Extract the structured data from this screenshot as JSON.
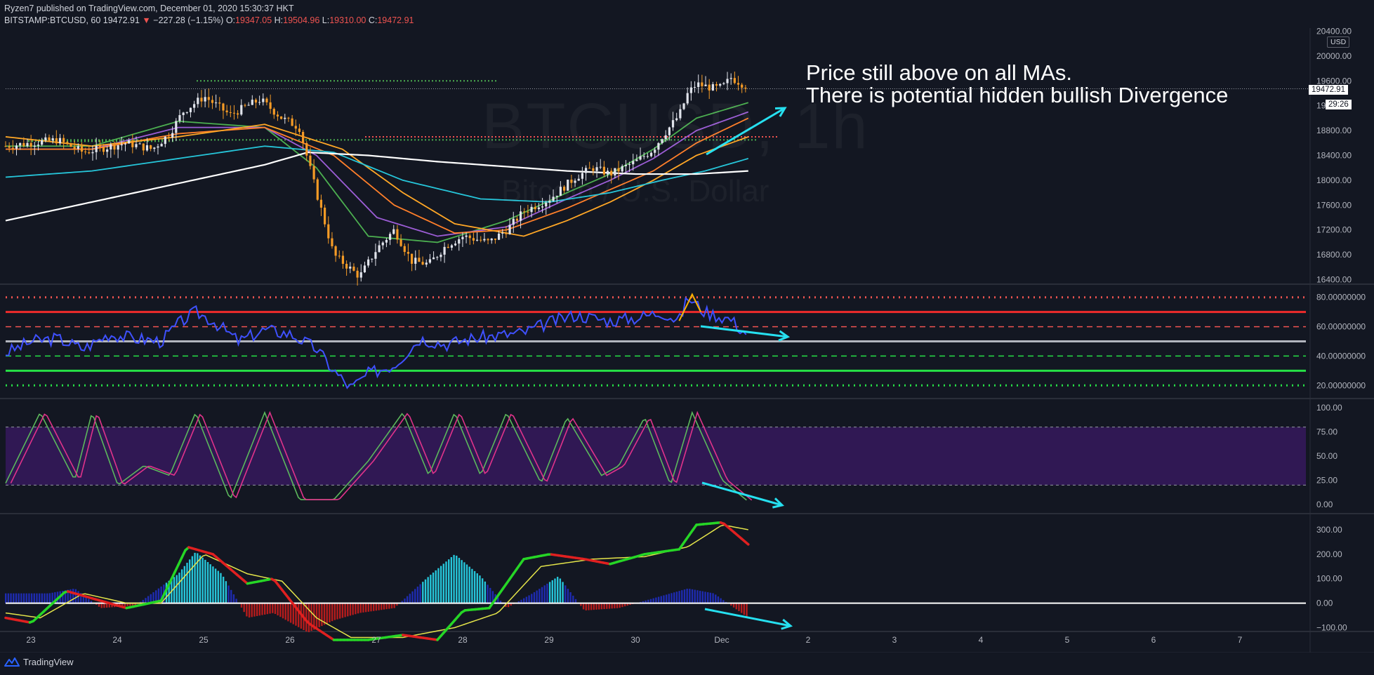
{
  "header": {
    "publish_line": "Ryzen7 published on TradingView.com, December 01, 2020 15:30:37 HKT",
    "symbol": "BITSTAMP:BTCUSD, 60",
    "last": "19472.91",
    "change": "−227.28 (−1.15%)",
    "o_label": "O:",
    "o": "19347.05",
    "h_label": "H:",
    "h": "19504.96",
    "l_label": "L:",
    "l": "19310.00",
    "c_label": "C:",
    "c": "19472.91"
  },
  "watermark": {
    "symbol": "BTCUSD, 1h",
    "name": "Bitcoin / U.S. Dollar"
  },
  "annotation": {
    "line1": "Price still above on all MAs.",
    "line2": "There is potential hidden bullish Divergence"
  },
  "badges": {
    "currency": "USD",
    "price": "19472.91",
    "countdown": "29:26"
  },
  "brand": {
    "name": "TradingView"
  },
  "colors": {
    "background": "#131722",
    "up": "#26a69a",
    "down": "#ef5350",
    "candle_up": "#e0e3eb",
    "candle_down": "#f59b26",
    "ma_fast": "#4caf50",
    "ma_2": "#9c5dd6",
    "ma_3": "#ff7f2a",
    "ma_4": "#ffa726",
    "ma_5": "#26c6da",
    "ma_200": "#ffffff",
    "rsi": "#3f51ff",
    "annotation_arrow": "#26e0f0"
  },
  "chart_data": [
    {
      "type": "candlestick",
      "panel": "price",
      "x_tick_labels": [
        "23",
        "24",
        "25",
        "26",
        "27",
        "28",
        "29",
        "30",
        "Dec",
        "2",
        "3",
        "4",
        "5",
        "6",
        "7"
      ],
      "y_tick_labels": [
        "20400.00",
        "20000.00",
        "19600.00",
        "19200.00",
        "18800.00",
        "18400.00",
        "18000.00",
        "17600.00",
        "17200.00",
        "16800.00",
        "16400.00"
      ],
      "ylim": [
        16350,
        20450
      ],
      "price_path": [
        [
          0,
          18550
        ],
        [
          0.6,
          18650
        ],
        [
          0.9,
          18450
        ],
        [
          1.4,
          18600
        ],
        [
          1.7,
          18500
        ],
        [
          1.9,
          18750
        ],
        [
          2.05,
          19100
        ],
        [
          2.3,
          19350
        ],
        [
          2.6,
          19050
        ],
        [
          2.8,
          19200
        ],
        [
          2.95,
          19300
        ],
        [
          3.2,
          19000
        ],
        [
          3.4,
          18850
        ],
        [
          3.6,
          17800
        ],
        [
          3.8,
          16800
        ],
        [
          4.1,
          16450
        ],
        [
          4.3,
          16900
        ],
        [
          4.5,
          17200
        ],
        [
          4.7,
          16700
        ],
        [
          4.9,
          16650
        ],
        [
          5.1,
          16950
        ],
        [
          5.3,
          17100
        ],
        [
          5.6,
          17000
        ],
        [
          5.8,
          17200
        ],
        [
          6.0,
          17500
        ],
        [
          6.3,
          17700
        ],
        [
          6.6,
          18050
        ],
        [
          6.8,
          18200
        ],
        [
          7.0,
          18100
        ],
        [
          7.3,
          18300
        ],
        [
          7.5,
          18500
        ],
        [
          7.6,
          18700
        ],
        [
          7.8,
          19050
        ],
        [
          7.9,
          19400
        ],
        [
          8.0,
          19550
        ],
        [
          8.2,
          19480
        ],
        [
          8.3,
          19500
        ],
        [
          8.4,
          19650
        ],
        [
          8.6,
          19500
        ]
      ],
      "moving_averages": [
        {
          "points": [
            [
              0,
              18550
            ],
            [
              1,
              18550
            ],
            [
              2,
              18950
            ],
            [
              3,
              18850
            ],
            [
              3.6,
              18200
            ],
            [
              4.2,
              17100
            ],
            [
              5,
              17000
            ],
            [
              5.8,
              17350
            ],
            [
              6.5,
              17800
            ],
            [
              7,
              18100
            ],
            [
              7.5,
              18500
            ],
            [
              8,
              19000
            ],
            [
              8.6,
              19250
            ]
          ]
        },
        {
          "points": [
            [
              0,
              18500
            ],
            [
              1,
              18500
            ],
            [
              2,
              18850
            ],
            [
              3,
              18850
            ],
            [
              3.6,
              18400
            ],
            [
              4.3,
              17400
            ],
            [
              5,
              17100
            ],
            [
              5.8,
              17250
            ],
            [
              6.5,
              17700
            ],
            [
              7,
              18000
            ],
            [
              7.5,
              18350
            ],
            [
              8,
              18800
            ],
            [
              8.6,
              19100
            ]
          ]
        },
        {
          "points": [
            [
              0,
              18500
            ],
            [
              1,
              18500
            ],
            [
              2,
              18750
            ],
            [
              3,
              18850
            ],
            [
              3.8,
              18400
            ],
            [
              4.5,
              17600
            ],
            [
              5.2,
              17150
            ],
            [
              5.8,
              17200
            ],
            [
              6.5,
              17550
            ],
            [
              7,
              17850
            ],
            [
              7.5,
              18150
            ],
            [
              8,
              18600
            ],
            [
              8.6,
              19000
            ]
          ]
        },
        {
          "points": [
            [
              0,
              18700
            ],
            [
              1,
              18550
            ],
            [
              2,
              18700
            ],
            [
              3,
              18900
            ],
            [
              3.9,
              18500
            ],
            [
              4.6,
              17800
            ],
            [
              5.2,
              17300
            ],
            [
              6,
              17100
            ],
            [
              6.5,
              17350
            ],
            [
              7,
              17650
            ],
            [
              7.5,
              18000
            ],
            [
              8,
              18400
            ],
            [
              8.6,
              18700
            ]
          ]
        },
        {
          "points": [
            [
              0,
              18050
            ],
            [
              1,
              18150
            ],
            [
              2,
              18350
            ],
            [
              3,
              18550
            ],
            [
              3.8,
              18450
            ],
            [
              4.6,
              18000
            ],
            [
              5.5,
              17700
            ],
            [
              6.3,
              17650
            ],
            [
              7,
              17800
            ],
            [
              7.6,
              18000
            ],
            [
              8.1,
              18150
            ],
            [
              8.6,
              18350
            ]
          ]
        },
        {
          "points": [
            [
              0,
              17350
            ],
            [
              1,
              17650
            ],
            [
              2,
              17950
            ],
            [
              3,
              18250
            ],
            [
              3.5,
              18450
            ],
            [
              4.2,
              18400
            ],
            [
              5,
              18300
            ],
            [
              6.5,
              18150
            ],
            [
              7.3,
              18100
            ],
            [
              8,
              18100
            ],
            [
              8.6,
              18150
            ]
          ]
        }
      ],
      "horizontal_levels": [
        19600,
        18700,
        18650
      ],
      "current_price": 19472.91
    },
    {
      "type": "line",
      "panel": "rsi",
      "y_tick_labels": [
        "80.00000000",
        "60.00000000",
        "40.00000000",
        "20.00000000"
      ],
      "ylim": [
        12,
        88
      ],
      "levels": [
        80,
        70,
        60,
        50,
        40,
        30,
        20
      ],
      "points": [
        [
          0,
          42
        ],
        [
          0.3,
          50
        ],
        [
          0.6,
          52
        ],
        [
          0.9,
          45
        ],
        [
          1.2,
          55
        ],
        [
          1.5,
          52
        ],
        [
          1.8,
          50
        ],
        [
          2,
          62
        ],
        [
          2.2,
          70
        ],
        [
          2.4,
          64
        ],
        [
          2.7,
          50
        ],
        [
          3,
          58
        ],
        [
          3.3,
          55
        ],
        [
          3.6,
          45
        ],
        [
          3.8,
          30
        ],
        [
          4,
          18
        ],
        [
          4.2,
          28
        ],
        [
          4.5,
          34
        ],
        [
          4.8,
          52
        ],
        [
          5.1,
          48
        ],
        [
          5.4,
          52
        ],
        [
          5.7,
          54
        ],
        [
          6,
          56
        ],
        [
          6.3,
          63
        ],
        [
          6.6,
          68
        ],
        [
          7,
          64
        ],
        [
          7.3,
          66
        ],
        [
          7.6,
          70
        ],
        [
          7.8,
          64
        ],
        [
          7.9,
          80
        ],
        [
          8.1,
          70
        ],
        [
          8.4,
          65
        ],
        [
          8.5,
          59
        ],
        [
          8.6,
          55
        ]
      ]
    },
    {
      "type": "line",
      "panel": "stochastic",
      "y_tick_labels": [
        "100.00",
        "75.00",
        "50.00",
        "25.00",
        "0.00"
      ],
      "ylim": [
        -8,
        108
      ],
      "band": [
        20,
        80
      ],
      "k_points": [
        [
          0,
          22
        ],
        [
          0.4,
          95
        ],
        [
          0.8,
          25
        ],
        [
          1.0,
          95
        ],
        [
          1.3,
          20
        ],
        [
          1.6,
          40
        ],
        [
          1.9,
          30
        ],
        [
          2.2,
          95
        ],
        [
          2.6,
          5
        ],
        [
          3.0,
          95
        ],
        [
          3.4,
          5
        ],
        [
          3.8,
          5
        ],
        [
          4.2,
          45
        ],
        [
          4.6,
          95
        ],
        [
          4.9,
          30
        ],
        [
          5.2,
          95
        ],
        [
          5.5,
          30
        ],
        [
          5.8,
          95
        ],
        [
          6.2,
          22
        ],
        [
          6.5,
          90
        ],
        [
          6.9,
          30
        ],
        [
          7.1,
          40
        ],
        [
          7.4,
          90
        ],
        [
          7.7,
          20
        ],
        [
          7.95,
          95
        ],
        [
          8.3,
          25
        ],
        [
          8.6,
          3
        ]
      ]
    },
    {
      "type": "bar",
      "panel": "macd",
      "y_tick_labels": [
        "300.00",
        "200.00",
        "100.00",
        "0.00",
        "−100.00"
      ],
      "ylim": [
        -110,
        360
      ],
      "macd_points": [
        [
          0,
          -60
        ],
        [
          0.3,
          -80
        ],
        [
          0.7,
          50
        ],
        [
          1.0,
          20
        ],
        [
          1.4,
          -20
        ],
        [
          1.8,
          10
        ],
        [
          2.1,
          230
        ],
        [
          2.4,
          200
        ],
        [
          2.8,
          80
        ],
        [
          3.1,
          100
        ],
        [
          3.5,
          -80
        ],
        [
          3.8,
          -150
        ],
        [
          4.2,
          -150
        ],
        [
          4.6,
          -130
        ],
        [
          5.0,
          -150
        ],
        [
          5.3,
          -30
        ],
        [
          5.6,
          -20
        ],
        [
          6.0,
          180
        ],
        [
          6.3,
          200
        ],
        [
          6.7,
          180
        ],
        [
          7.0,
          160
        ],
        [
          7.4,
          200
        ],
        [
          7.8,
          220
        ],
        [
          8.0,
          320
        ],
        [
          8.3,
          330
        ],
        [
          8.6,
          240
        ]
      ],
      "signal_points": [
        [
          0,
          -40
        ],
        [
          0.4,
          -60
        ],
        [
          0.9,
          40
        ],
        [
          1.4,
          0
        ],
        [
          1.8,
          0
        ],
        [
          2.3,
          200
        ],
        [
          2.8,
          120
        ],
        [
          3.2,
          90
        ],
        [
          3.6,
          -60
        ],
        [
          4.0,
          -140
        ],
        [
          4.6,
          -140
        ],
        [
          5.2,
          -100
        ],
        [
          5.7,
          -40
        ],
        [
          6.2,
          150
        ],
        [
          6.8,
          180
        ],
        [
          7.4,
          190
        ],
        [
          7.9,
          230
        ],
        [
          8.3,
          320
        ],
        [
          8.6,
          300
        ]
      ],
      "histogram": [
        [
          0.5,
          40
        ],
        [
          0.8,
          60
        ],
        [
          1.1,
          -20
        ],
        [
          1.5,
          -10
        ],
        [
          2.0,
          120
        ],
        [
          2.2,
          210
        ],
        [
          2.5,
          120
        ],
        [
          2.8,
          -60
        ],
        [
          3.1,
          -40
        ],
        [
          3.5,
          -120
        ],
        [
          3.8,
          -70
        ],
        [
          4.1,
          -40
        ],
        [
          4.5,
          -20
        ],
        [
          4.9,
          110
        ],
        [
          5.2,
          200
        ],
        [
          5.5,
          110
        ],
        [
          5.8,
          -20
        ],
        [
          6.1,
          40
        ],
        [
          6.4,
          110
        ],
        [
          6.7,
          -30
        ],
        [
          7.1,
          -20
        ],
        [
          7.5,
          20
        ],
        [
          7.9,
          60
        ],
        [
          8.2,
          40
        ],
        [
          8.6,
          -60
        ]
      ]
    }
  ]
}
